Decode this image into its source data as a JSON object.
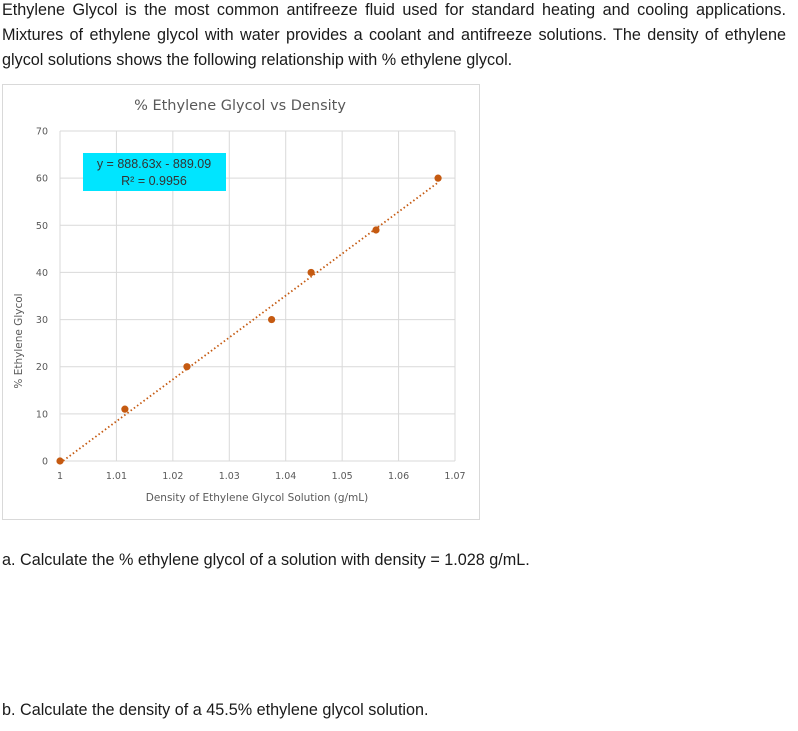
{
  "intro_text": "Ethylene Glycol is the most common antifreeze fluid used for standard heating and cooling applications. Mixtures of ethylene glycol with water provides a coolant and antifreeze solutions. The density of ethylene glycol solutions shows the following relationship with % ethylene glycol.",
  "questions": [
    "a.  Calculate the % ethylene glycol of a solution with density = 1.028 g/mL.",
    "b.  Calculate the density of a 45.5% ethylene glycol solution."
  ],
  "chart_data": {
    "type": "scatter",
    "title": "% Ethylene Glycol vs Density",
    "xlabel": "Density of Ethylene Glycol Solution (g/mL)",
    "ylabel": "% Ethylene Glycol",
    "xlim": [
      1,
      1.07
    ],
    "ylim": [
      0,
      70
    ],
    "xticks": [
      1,
      1.01,
      1.02,
      1.03,
      1.04,
      1.05,
      1.06,
      1.07
    ],
    "xtick_labels": [
      "1",
      "1.01",
      "1.02",
      "1.03",
      "1.04",
      "1.05",
      "1.06",
      "1.07"
    ],
    "yticks": [
      0,
      10,
      20,
      30,
      40,
      50,
      60,
      70
    ],
    "ytick_labels": [
      "0",
      "10",
      "20",
      "30",
      "40",
      "50",
      "60",
      "70"
    ],
    "grid": true,
    "points": [
      {
        "x": 1.0,
        "y": 0
      },
      {
        "x": 1.0115,
        "y": 11
      },
      {
        "x": 1.0225,
        "y": 20
      },
      {
        "x": 1.0375,
        "y": 30
      },
      {
        "x": 1.0445,
        "y": 40
      },
      {
        "x": 1.056,
        "y": 49
      },
      {
        "x": 1.067,
        "y": 60
      }
    ],
    "point_color": "#c55a11",
    "trendline": {
      "type": "linear",
      "slope": 888.63,
      "intercept": -889.09,
      "color": "#c55a11",
      "equation_label": "y = 888.63x - 889.09",
      "r2_label": "R² = 0.9956",
      "label_background": "#00e5ff"
    }
  }
}
